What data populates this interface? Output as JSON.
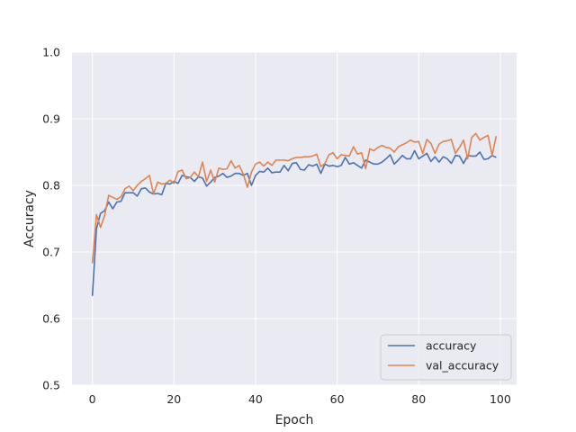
{
  "chart_data": {
    "type": "line",
    "xlabel": "Epoch",
    "ylabel": "Accuracy",
    "xlim": [
      -5,
      104
    ],
    "ylim": [
      0.5,
      1.0
    ],
    "xticks": [
      0,
      20,
      40,
      60,
      80,
      100
    ],
    "yticks": [
      0.5,
      0.6,
      0.7,
      0.8,
      0.9,
      1.0
    ],
    "xtick_labels": [
      "0",
      "20",
      "40",
      "60",
      "80",
      "100"
    ],
    "ytick_labels": [
      "0.5",
      "0.6",
      "0.7",
      "0.8",
      "0.9",
      "1.0"
    ],
    "grid": true,
    "legend_position": "lower-right",
    "background": "#eaeaf2",
    "series": [
      {
        "name": "accuracy",
        "color": "#4c72b0",
        "values": [
          0.634,
          0.735,
          0.758,
          0.762,
          0.775,
          0.765,
          0.775,
          0.776,
          0.789,
          0.789,
          0.789,
          0.784,
          0.795,
          0.796,
          0.79,
          0.787,
          0.788,
          0.786,
          0.803,
          0.802,
          0.806,
          0.803,
          0.815,
          0.813,
          0.812,
          0.806,
          0.813,
          0.811,
          0.799,
          0.805,
          0.812,
          0.814,
          0.818,
          0.812,
          0.814,
          0.818,
          0.818,
          0.815,
          0.818,
          0.8,
          0.815,
          0.821,
          0.82,
          0.826,
          0.819,
          0.82,
          0.82,
          0.83,
          0.822,
          0.833,
          0.834,
          0.824,
          0.823,
          0.831,
          0.829,
          0.832,
          0.818,
          0.832,
          0.829,
          0.83,
          0.828,
          0.83,
          0.842,
          0.832,
          0.834,
          0.83,
          0.826,
          0.838,
          0.835,
          0.832,
          0.832,
          0.835,
          0.84,
          0.846,
          0.832,
          0.838,
          0.845,
          0.84,
          0.84,
          0.852,
          0.84,
          0.844,
          0.848,
          0.836,
          0.843,
          0.835,
          0.843,
          0.84,
          0.833,
          0.845,
          0.844,
          0.833,
          0.845,
          0.844,
          0.844,
          0.85,
          0.839,
          0.84,
          0.845,
          0.842
        ]
      },
      {
        "name": "val_accuracy",
        "color": "#dd8452",
        "values": [
          0.683,
          0.756,
          0.737,
          0.755,
          0.785,
          0.782,
          0.779,
          0.783,
          0.795,
          0.799,
          0.792,
          0.8,
          0.806,
          0.81,
          0.815,
          0.787,
          0.805,
          0.802,
          0.803,
          0.808,
          0.803,
          0.821,
          0.823,
          0.81,
          0.812,
          0.82,
          0.813,
          0.835,
          0.806,
          0.823,
          0.805,
          0.826,
          0.824,
          0.825,
          0.837,
          0.826,
          0.83,
          0.817,
          0.797,
          0.82,
          0.832,
          0.835,
          0.829,
          0.835,
          0.83,
          0.838,
          0.838,
          0.838,
          0.837,
          0.84,
          0.842,
          0.842,
          0.843,
          0.843,
          0.844,
          0.847,
          0.828,
          0.833,
          0.846,
          0.849,
          0.84,
          0.846,
          0.845,
          0.844,
          0.858,
          0.847,
          0.849,
          0.825,
          0.855,
          0.852,
          0.857,
          0.86,
          0.857,
          0.856,
          0.85,
          0.858,
          0.861,
          0.864,
          0.868,
          0.865,
          0.866,
          0.848,
          0.869,
          0.863,
          0.848,
          0.862,
          0.866,
          0.867,
          0.869,
          0.848,
          0.857,
          0.868,
          0.84,
          0.872,
          0.878,
          0.868,
          0.872,
          0.875,
          0.845,
          0.874
        ]
      }
    ]
  }
}
